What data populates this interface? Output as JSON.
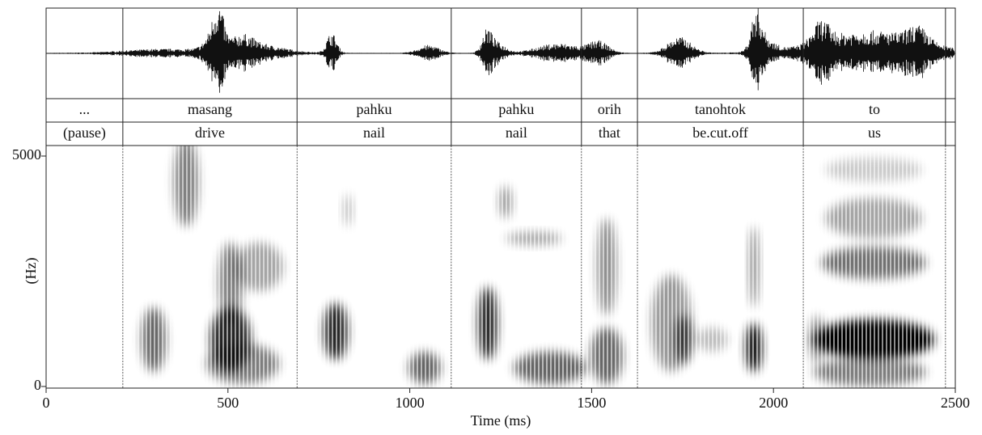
{
  "chart_data": {
    "type": "spectrogram",
    "xlabel": "Time (ms)",
    "ylabel": "(Hz)",
    "xlim": [
      0,
      2500
    ],
    "xticks": [
      0,
      500,
      1000,
      1500,
      2000,
      2500
    ],
    "ylim": [
      0,
      5000
    ],
    "yticks": [
      0,
      5000
    ],
    "boundaries": [
      211,
      690,
      1114,
      1472,
      1626,
      2082,
      2473
    ],
    "tiers": [
      {
        "labels": [
          "...",
          "masang",
          "pahku",
          "pahku",
          "orih",
          "tanohtok",
          "to",
          null
        ]
      },
      {
        "labels": [
          "(pause)",
          "drive",
          "nail",
          "nail",
          "that",
          "be.cut.off",
          "us",
          null
        ]
      }
    ]
  }
}
